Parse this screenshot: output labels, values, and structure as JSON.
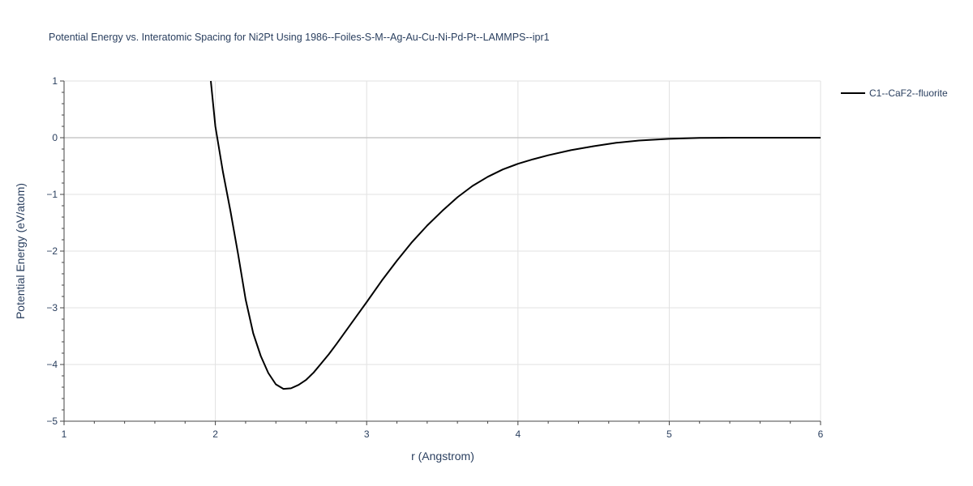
{
  "chart_data": {
    "type": "line",
    "title": "Potential Energy vs. Interatomic Spacing for Ni2Pt Using 1986--Foiles-S-M--Ag-Au-Cu-Ni-Pd-Pt--LAMMPS--ipr1",
    "xlabel": "r (Angstrom)",
    "ylabel": "Potential Energy (eV/atom)",
    "xlim": [
      1,
      6
    ],
    "ylim": [
      -5,
      1
    ],
    "x_ticks": [
      "1",
      "2",
      "3",
      "4",
      "5",
      "6"
    ],
    "y_ticks": [
      "1",
      "0",
      "−1",
      "−2",
      "−3",
      "−4",
      "−5"
    ],
    "x_tick_values": [
      1,
      2,
      3,
      4,
      5,
      6
    ],
    "y_tick_values": [
      1,
      0,
      -1,
      -2,
      -3,
      -4,
      -5
    ],
    "grid": true,
    "legend_position": "top-right",
    "series": [
      {
        "name": "C1--CaF2--fluorite",
        "color": "#000000",
        "x": [
          1.97,
          2.0,
          2.05,
          2.1,
          2.15,
          2.2,
          2.25,
          2.3,
          2.35,
          2.4,
          2.45,
          2.5,
          2.55,
          2.6,
          2.65,
          2.7,
          2.75,
          2.8,
          2.9,
          3.0,
          3.1,
          3.2,
          3.3,
          3.4,
          3.5,
          3.6,
          3.7,
          3.8,
          3.9,
          4.0,
          4.1,
          4.2,
          4.35,
          4.5,
          4.65,
          4.8,
          5.0,
          5.2,
          5.4,
          5.6,
          5.8,
          6.0
        ],
        "y": [
          1.0,
          0.2,
          -0.6,
          -1.3,
          -2.05,
          -2.85,
          -3.45,
          -3.85,
          -4.15,
          -4.35,
          -4.43,
          -4.42,
          -4.36,
          -4.27,
          -4.14,
          -3.98,
          -3.82,
          -3.64,
          -3.27,
          -2.9,
          -2.52,
          -2.17,
          -1.84,
          -1.55,
          -1.29,
          -1.05,
          -0.85,
          -0.69,
          -0.56,
          -0.46,
          -0.38,
          -0.31,
          -0.22,
          -0.15,
          -0.09,
          -0.05,
          -0.02,
          -0.005,
          0.0,
          0.0,
          0.0,
          0.0
        ]
      }
    ]
  }
}
